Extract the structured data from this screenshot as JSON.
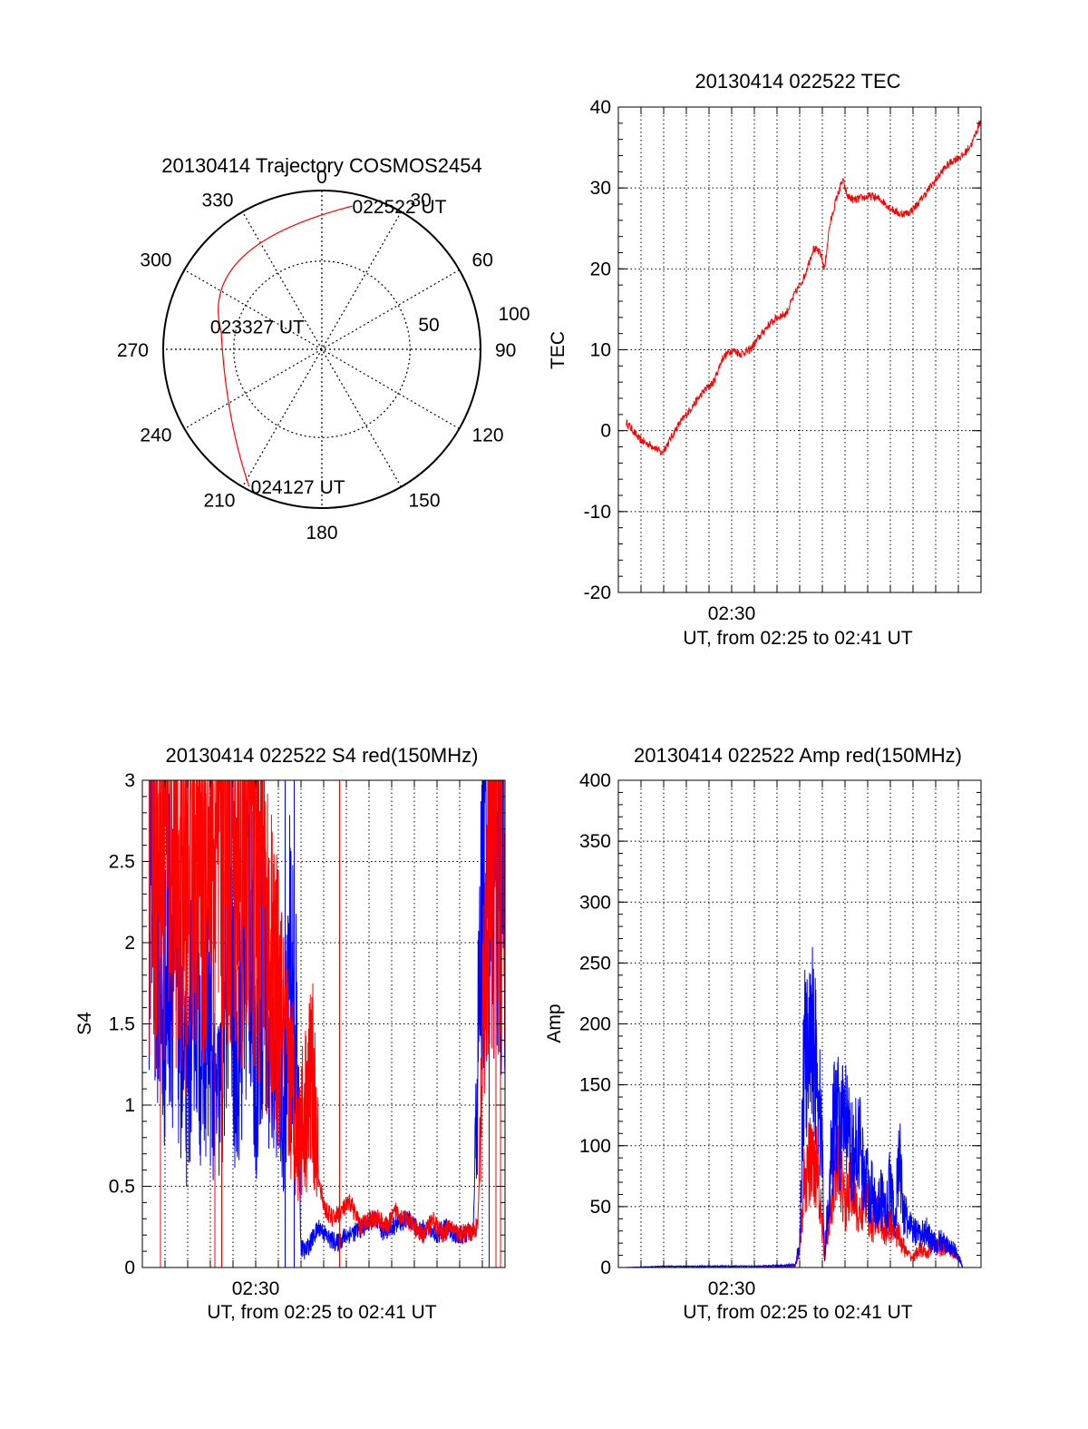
{
  "colors": {
    "red": "#ff0000",
    "blue": "#0000ff",
    "axis": "#000000",
    "grid": "#000000"
  },
  "polar": {
    "title": "20130414 Trajectory COSMOS2454",
    "angle_labels": [
      "0",
      "30",
      "60",
      "90",
      "120",
      "150",
      "180",
      "210",
      "240",
      "270",
      "300",
      "330"
    ],
    "radial_labels": [
      "50",
      "100"
    ],
    "markers": [
      {
        "label": "022522 UT",
        "az": 12,
        "zen": 83
      },
      {
        "label": "023327 UT",
        "az": 280,
        "zen": 58
      },
      {
        "label": "024127 UT",
        "az": 208,
        "zen": 88
      }
    ],
    "track_color": "#ff0000"
  },
  "chart_data": [
    {
      "id": "tec",
      "type": "line",
      "title": "20130414 022522 TEC",
      "xlabel": "UT, from 02:25 to 02:41 UT",
      "ylabel": "TEC",
      "xlim": [
        0,
        16
      ],
      "ylim": [
        -20,
        40
      ],
      "yticks": [
        -20,
        -10,
        0,
        10,
        20,
        30,
        40
      ],
      "xticks": [
        {
          "x": 5,
          "label": "02:30"
        }
      ],
      "grid": true,
      "series": [
        {
          "color": "#ff0000",
          "x": [
            0.35,
            0.6,
            0.9,
            1.2,
            1.6,
            1.9,
            2.2,
            2.6,
            3.0,
            3.4,
            3.8,
            4.2,
            4.6,
            5.0,
            5.4,
            5.8,
            6.2,
            6.6,
            7.0,
            7.4,
            7.8,
            8.2,
            8.6,
            8.9,
            9.0,
            9.1,
            9.3,
            9.6,
            9.9,
            10.1,
            10.4,
            10.8,
            11.2,
            11.6,
            12.0,
            12.4,
            12.8,
            13.2,
            13.6,
            14.0,
            14.4,
            14.8,
            15.2,
            15.6,
            16.0
          ],
          "y": [
            1.0,
            0.2,
            -1.0,
            -1.5,
            -2.0,
            -2.8,
            -1.5,
            0.5,
            2.0,
            3.5,
            5.0,
            6.0,
            9.0,
            10.0,
            9.5,
            10.0,
            11.5,
            13.0,
            14.0,
            14.5,
            17.0,
            19.0,
            22.5,
            22.0,
            21.0,
            20.0,
            25.0,
            28.5,
            31.0,
            29.0,
            28.5,
            28.8,
            29.0,
            28.5,
            27.5,
            26.8,
            26.9,
            28.0,
            29.5,
            31.0,
            32.5,
            33.5,
            34.0,
            35.5,
            38.5
          ]
        }
      ]
    },
    {
      "id": "s4",
      "type": "line",
      "title": "20130414 022522 S4 red(150MHz)",
      "xlabel": "UT, from 02:25 to 02:41 UT",
      "ylabel": "S4",
      "xlim": [
        0,
        16
      ],
      "ylim": [
        0,
        3
      ],
      "yticks": [
        0,
        0.5,
        1,
        1.5,
        2,
        2.5,
        3
      ],
      "ytick_labels": [
        "0",
        "0.5",
        "1",
        "1.5",
        "2",
        "2.5",
        "3"
      ],
      "xticks": [
        {
          "x": 5,
          "label": "02:30"
        }
      ],
      "grid": true,
      "series": [
        {
          "color": "#0000ff",
          "x": [
            0.3,
            0.6,
            0.9,
            1.2,
            1.5,
            1.8,
            2.0,
            2.3,
            2.6,
            2.9,
            3.2,
            3.5,
            3.8,
            4.1,
            4.4,
            4.7,
            5.0,
            5.3,
            5.6,
            5.9,
            6.2,
            6.5,
            6.8,
            7.0,
            7.2,
            7.4,
            7.8,
            8.2,
            8.6,
            9.0,
            9.4,
            9.8,
            10.2,
            10.6,
            11.0,
            11.4,
            11.8,
            12.2,
            12.6,
            13.0,
            13.4,
            13.8,
            14.2,
            14.6,
            14.9,
            15.1,
            15.4,
            15.7,
            16.0
          ],
          "y": [
            2.6,
            2.3,
            1.4,
            2.0,
            1.8,
            1.2,
            1.0,
            2.1,
            1.3,
            1.5,
            1.0,
            1.1,
            2.3,
            1.2,
            1.6,
            2.4,
            1.1,
            2.0,
            1.2,
            1.5,
            0.9,
            1.8,
            1.4,
            0.12,
            0.1,
            0.15,
            0.25,
            0.18,
            0.15,
            0.2,
            0.22,
            0.25,
            0.3,
            0.22,
            0.25,
            0.28,
            0.3,
            0.22,
            0.25,
            0.2,
            0.25,
            0.2,
            0.2,
            0.22,
            1.8,
            2.6,
            2.9,
            2.5,
            2.2
          ]
        },
        {
          "color": "#ff0000",
          "x": [
            0.3,
            0.6,
            0.9,
            1.2,
            1.5,
            1.8,
            2.1,
            2.4,
            2.7,
            3.0,
            3.3,
            3.6,
            3.9,
            4.2,
            4.5,
            4.8,
            5.1,
            5.4,
            5.7,
            6.0,
            6.3,
            6.6,
            6.9,
            7.2,
            7.5,
            7.8,
            8.1,
            8.4,
            8.8,
            9.2,
            9.6,
            10.0,
            10.4,
            10.8,
            11.2,
            11.6,
            12.0,
            12.4,
            12.8,
            13.2,
            13.6,
            14.0,
            14.4,
            14.8,
            15.2,
            15.6,
            16.0
          ],
          "y": [
            2.8,
            2.4,
            2.9,
            2.5,
            2.7,
            2.2,
            2.6,
            2.9,
            2.4,
            2.8,
            2.3,
            2.9,
            2.6,
            2.4,
            2.8,
            2.7,
            2.5,
            2.2,
            1.8,
            1.6,
            1.3,
            1.1,
            0.8,
            1.0,
            1.2,
            0.5,
            0.35,
            0.3,
            0.35,
            0.4,
            0.25,
            0.3,
            0.3,
            0.25,
            0.35,
            0.3,
            0.25,
            0.2,
            0.3,
            0.2,
            0.25,
            0.2,
            0.22,
            0.25,
            2.2,
            2.8,
            2.6
          ]
        }
      ]
    },
    {
      "id": "amp",
      "type": "line",
      "title": "20130414 022522 Amp red(150MHz)",
      "xlabel": "UT, from 02:25 to 02:41 UT",
      "ylabel": "Amp",
      "xlim": [
        0,
        16
      ],
      "ylim": [
        0,
        400
      ],
      "yticks": [
        0,
        50,
        100,
        150,
        200,
        250,
        300,
        350,
        400
      ],
      "xticks": [
        {
          "x": 5,
          "label": "02:30"
        }
      ],
      "grid": true,
      "series": [
        {
          "color": "#ff0000",
          "x": [
            0.3,
            2.0,
            4.0,
            6.0,
            7.8,
            8.0,
            8.2,
            8.5,
            8.8,
            9.1,
            9.4,
            9.7,
            10.0,
            10.3,
            10.6,
            10.9,
            11.2,
            11.5,
            11.8,
            12.1,
            12.4,
            12.7,
            13.0,
            13.3,
            13.6,
            13.9,
            14.2,
            14.5,
            14.8,
            15.0,
            15.2,
            15.6,
            16.0
          ],
          "y": [
            0,
            0,
            0,
            0,
            1,
            15,
            70,
            90,
            85,
            5,
            60,
            90,
            50,
            70,
            40,
            55,
            35,
            45,
            30,
            35,
            25,
            12,
            8,
            15,
            10,
            20,
            15,
            18,
            12,
            8,
            0,
            0,
            0
          ]
        },
        {
          "color": "#0000ff",
          "x": [
            0.3,
            2.0,
            4.0,
            6.0,
            7.8,
            8.0,
            8.2,
            8.4,
            8.6,
            8.8,
            9.0,
            9.1,
            9.2,
            9.4,
            9.6,
            9.8,
            10.0,
            10.2,
            10.4,
            10.6,
            10.8,
            11.0,
            11.2,
            11.4,
            11.6,
            11.8,
            12.0,
            12.2,
            12.4,
            12.6,
            12.8,
            13.0,
            13.3,
            13.6,
            13.9,
            14.2,
            14.5,
            14.8,
            15.0,
            15.2,
            15.6,
            16.0
          ],
          "y": [
            0,
            1,
            1,
            1,
            2,
            20,
            180,
            160,
            200,
            150,
            100,
            5,
            40,
            90,
            140,
            110,
            120,
            100,
            90,
            110,
            80,
            70,
            60,
            50,
            60,
            45,
            70,
            40,
            90,
            45,
            35,
            30,
            25,
            30,
            20,
            22,
            18,
            15,
            10,
            0,
            0,
            0
          ]
        }
      ]
    }
  ]
}
